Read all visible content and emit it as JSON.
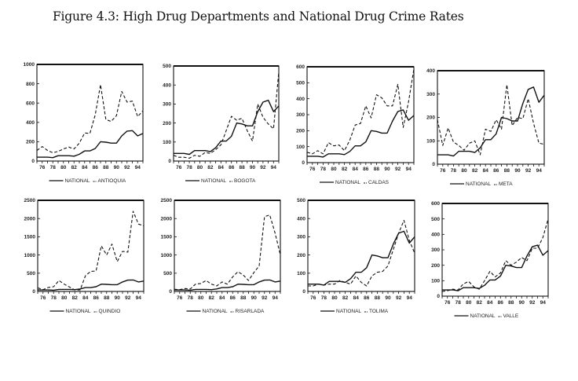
{
  "figure_title": "Figure 4.3: High Drug Departments and National Drug Crime Rates",
  "colors": {
    "line": "#111111",
    "frame": "#111111",
    "background": "#ffffff"
  },
  "chart_data": [
    {
      "type": "line",
      "title": "",
      "x": [
        1975,
        1976,
        1977,
        1978,
        1979,
        1980,
        1981,
        1982,
        1983,
        1984,
        1985,
        1986,
        1987,
        1988,
        1989,
        1990,
        1991,
        1992,
        1993,
        1994,
        1995
      ],
      "xticks": [
        "76",
        "78",
        "80",
        "82",
        "84",
        "86",
        "88",
        "90",
        "92",
        "94"
      ],
      "yticks": [
        "0",
        "200",
        "400",
        "600",
        "800",
        "1000"
      ],
      "ylim": [
        0,
        1000
      ],
      "legend": [
        "NATIONAL",
        "ANTIOQUIA"
      ],
      "series": [
        {
          "name": "NATIONAL",
          "style": "solid",
          "values": [
            40,
            40,
            40,
            35,
            55,
            55,
            55,
            50,
            70,
            105,
            105,
            130,
            200,
            195,
            185,
            185,
            260,
            310,
            315,
            260,
            285
          ]
        },
        {
          "name": "ANTIOQUIA",
          "style": "dashed",
          "values": [
            110,
            150,
            110,
            85,
            100,
            125,
            145,
            125,
            185,
            290,
            285,
            480,
            790,
            430,
            410,
            470,
            720,
            610,
            620,
            460,
            520
          ]
        }
      ]
    },
    {
      "type": "line",
      "title": "",
      "x": [
        1975,
        1976,
        1977,
        1978,
        1979,
        1980,
        1981,
        1982,
        1983,
        1984,
        1985,
        1986,
        1987,
        1988,
        1989,
        1990,
        1991,
        1992,
        1993,
        1994,
        1995
      ],
      "xticks": [
        "76",
        "78",
        "80",
        "82",
        "84",
        "86",
        "88",
        "90",
        "92",
        "94"
      ],
      "yticks": [
        "0",
        "100",
        "200",
        "300",
        "400",
        "500"
      ],
      "ylim": [
        0,
        500
      ],
      "legend": [
        "NATIONAL",
        "BOGOTA"
      ],
      "series": [
        {
          "name": "NATIONAL",
          "style": "solid",
          "values": [
            40,
            40,
            40,
            35,
            55,
            55,
            55,
            50,
            70,
            105,
            105,
            130,
            200,
            195,
            185,
            185,
            260,
            310,
            320,
            260,
            290
          ]
        },
        {
          "name": "BOGOTA",
          "style": "dashed",
          "values": [
            30,
            20,
            20,
            15,
            30,
            25,
            45,
            40,
            60,
            85,
            160,
            235,
            215,
            225,
            160,
            105,
            300,
            230,
            195,
            170,
            470
          ]
        }
      ]
    },
    {
      "type": "line",
      "title": "",
      "x": [
        1975,
        1976,
        1977,
        1978,
        1979,
        1980,
        1981,
        1982,
        1983,
        1984,
        1985,
        1986,
        1987,
        1988,
        1989,
        1990,
        1991,
        1992,
        1993,
        1994,
        1995
      ],
      "xticks": [
        "76",
        "78",
        "80",
        "82",
        "84",
        "86",
        "88",
        "90",
        "92",
        "94"
      ],
      "yticks": [
        "0",
        "100",
        "200",
        "300",
        "400",
        "500",
        "600"
      ],
      "ylim": [
        0,
        600
      ],
      "legend": [
        "NATIONAL",
        "CALDAS"
      ],
      "series": [
        {
          "name": "NATIONAL",
          "style": "solid",
          "values": [
            40,
            40,
            40,
            35,
            55,
            55,
            55,
            50,
            70,
            105,
            105,
            130,
            200,
            195,
            185,
            185,
            260,
            320,
            330,
            265,
            295
          ]
        },
        {
          "name": "CALDAS",
          "style": "dashed",
          "values": [
            65,
            55,
            75,
            55,
            125,
            105,
            110,
            75,
            140,
            235,
            245,
            355,
            280,
            425,
            405,
            355,
            355,
            490,
            220,
            380,
            585
          ]
        }
      ]
    },
    {
      "type": "line",
      "title": "",
      "x": [
        1975,
        1976,
        1977,
        1978,
        1979,
        1980,
        1981,
        1982,
        1983,
        1984,
        1985,
        1986,
        1987,
        1988,
        1989,
        1990,
        1991,
        1992,
        1993,
        1994,
        1995
      ],
      "xticks": [
        "76",
        "78",
        "80",
        "82",
        "84",
        "86",
        "88",
        "90",
        "92",
        "94"
      ],
      "yticks": [
        "0",
        "100",
        "200",
        "300",
        "400"
      ],
      "ylim": [
        0,
        400
      ],
      "legend": [
        "NATIONAL",
        "META"
      ],
      "series": [
        {
          "name": "NATIONAL",
          "style": "solid",
          "values": [
            40,
            40,
            40,
            35,
            55,
            55,
            55,
            50,
            70,
            105,
            105,
            130,
            200,
            195,
            185,
            185,
            260,
            320,
            330,
            265,
            295
          ]
        },
        {
          "name": "META",
          "style": "dashed",
          "values": [
            190,
            80,
            155,
            95,
            80,
            60,
            90,
            100,
            40,
            150,
            140,
            190,
            150,
            340,
            165,
            200,
            195,
            280,
            175,
            90,
            85
          ]
        }
      ]
    },
    {
      "type": "line",
      "title": "",
      "x": [
        1975,
        1976,
        1977,
        1978,
        1979,
        1980,
        1981,
        1982,
        1983,
        1984,
        1985,
        1986,
        1987,
        1988,
        1989,
        1990,
        1991,
        1992,
        1993,
        1994,
        1995
      ],
      "xticks": [
        "76",
        "78",
        "80",
        "82",
        "84",
        "86",
        "88",
        "90",
        "92",
        "94"
      ],
      "yticks": [
        "0",
        "500",
        "1000",
        "1500",
        "2000",
        "2500"
      ],
      "ylim": [
        0,
        2500
      ],
      "legend": [
        "NATIONAL",
        "QUINDIO"
      ],
      "series": [
        {
          "name": "NATIONAL",
          "style": "solid",
          "values": [
            40,
            40,
            40,
            35,
            55,
            55,
            55,
            50,
            70,
            105,
            105,
            130,
            200,
            195,
            185,
            185,
            260,
            310,
            315,
            260,
            285
          ]
        },
        {
          "name": "QUINDIO",
          "style": "dashed",
          "values": [
            100,
            50,
            110,
            130,
            300,
            200,
            120,
            40,
            40,
            430,
            550,
            560,
            1250,
            1000,
            1300,
            820,
            1100,
            1080,
            2200,
            1850,
            1800
          ]
        }
      ]
    },
    {
      "type": "line",
      "title": "",
      "x": [
        1975,
        1976,
        1977,
        1978,
        1979,
        1980,
        1981,
        1982,
        1983,
        1984,
        1985,
        1986,
        1987,
        1988,
        1989,
        1990,
        1991,
        1992,
        1993,
        1994,
        1995
      ],
      "xticks": [
        "76",
        "78",
        "80",
        "82",
        "84",
        "86",
        "88",
        "90",
        "92",
        "94"
      ],
      "yticks": [
        "0",
        "500",
        "1000",
        "1500",
        "2000",
        "2500"
      ],
      "ylim": [
        0,
        2500
      ],
      "legend": [
        "NATIONAL",
        "RISARLADA"
      ],
      "series": [
        {
          "name": "NATIONAL",
          "style": "solid",
          "values": [
            40,
            40,
            40,
            35,
            55,
            55,
            55,
            50,
            70,
            105,
            105,
            130,
            200,
            195,
            185,
            185,
            260,
            310,
            315,
            260,
            285
          ]
        },
        {
          "name": "RISARLADA",
          "style": "dashed",
          "values": [
            60,
            50,
            80,
            70,
            200,
            220,
            300,
            200,
            150,
            260,
            200,
            400,
            540,
            450,
            300,
            520,
            700,
            2050,
            2100,
            1600,
            1000
          ]
        }
      ]
    },
    {
      "type": "line",
      "title": "",
      "x": [
        1975,
        1976,
        1977,
        1978,
        1979,
        1980,
        1981,
        1982,
        1983,
        1984,
        1985,
        1986,
        1987,
        1988,
        1989,
        1990,
        1991,
        1992,
        1993,
        1994,
        1995
      ],
      "xticks": [
        "76",
        "78",
        "80",
        "82",
        "84",
        "86",
        "88",
        "90",
        "92",
        "94"
      ],
      "yticks": [
        "0",
        "100",
        "200",
        "300",
        "400",
        "500"
      ],
      "ylim": [
        0,
        500
      ],
      "legend": [
        "NATIONAL",
        "TOLIMA"
      ],
      "series": [
        {
          "name": "NATIONAL",
          "style": "solid",
          "values": [
            40,
            40,
            40,
            35,
            55,
            55,
            55,
            50,
            70,
            105,
            105,
            130,
            200,
            195,
            185,
            185,
            260,
            320,
            330,
            265,
            300
          ]
        },
        {
          "name": "TOLIMA",
          "style": "dashed",
          "values": [
            30,
            30,
            40,
            35,
            40,
            40,
            60,
            50,
            40,
            85,
            50,
            30,
            85,
            105,
            110,
            140,
            230,
            320,
            390,
            280,
            210
          ]
        }
      ]
    },
    {
      "type": "line",
      "title": "",
      "x": [
        1975,
        1976,
        1977,
        1978,
        1979,
        1980,
        1981,
        1982,
        1983,
        1984,
        1985,
        1986,
        1987,
        1988,
        1989,
        1990,
        1991,
        1992,
        1993,
        1994,
        1995
      ],
      "xticks": [
        "76",
        "78",
        "80",
        "82",
        "84",
        "86",
        "88",
        "90",
        "92",
        "94"
      ],
      "yticks": [
        "0",
        "100",
        "200",
        "300",
        "400",
        "500",
        "600"
      ],
      "ylim": [
        0,
        600
      ],
      "legend": [
        "NATIONAL",
        "VALLE"
      ],
      "series": [
        {
          "name": "NATIONAL",
          "style": "solid",
          "values": [
            40,
            40,
            40,
            35,
            55,
            55,
            55,
            50,
            70,
            105,
            105,
            130,
            200,
            195,
            185,
            185,
            260,
            320,
            330,
            265,
            295
          ]
        },
        {
          "name": "VALLE",
          "style": "dashed",
          "values": [
            30,
            35,
            45,
            40,
            80,
            95,
            60,
            45,
            100,
            160,
            125,
            150,
            230,
            200,
            220,
            250,
            230,
            310,
            310,
            380,
            500
          ]
        }
      ]
    }
  ]
}
